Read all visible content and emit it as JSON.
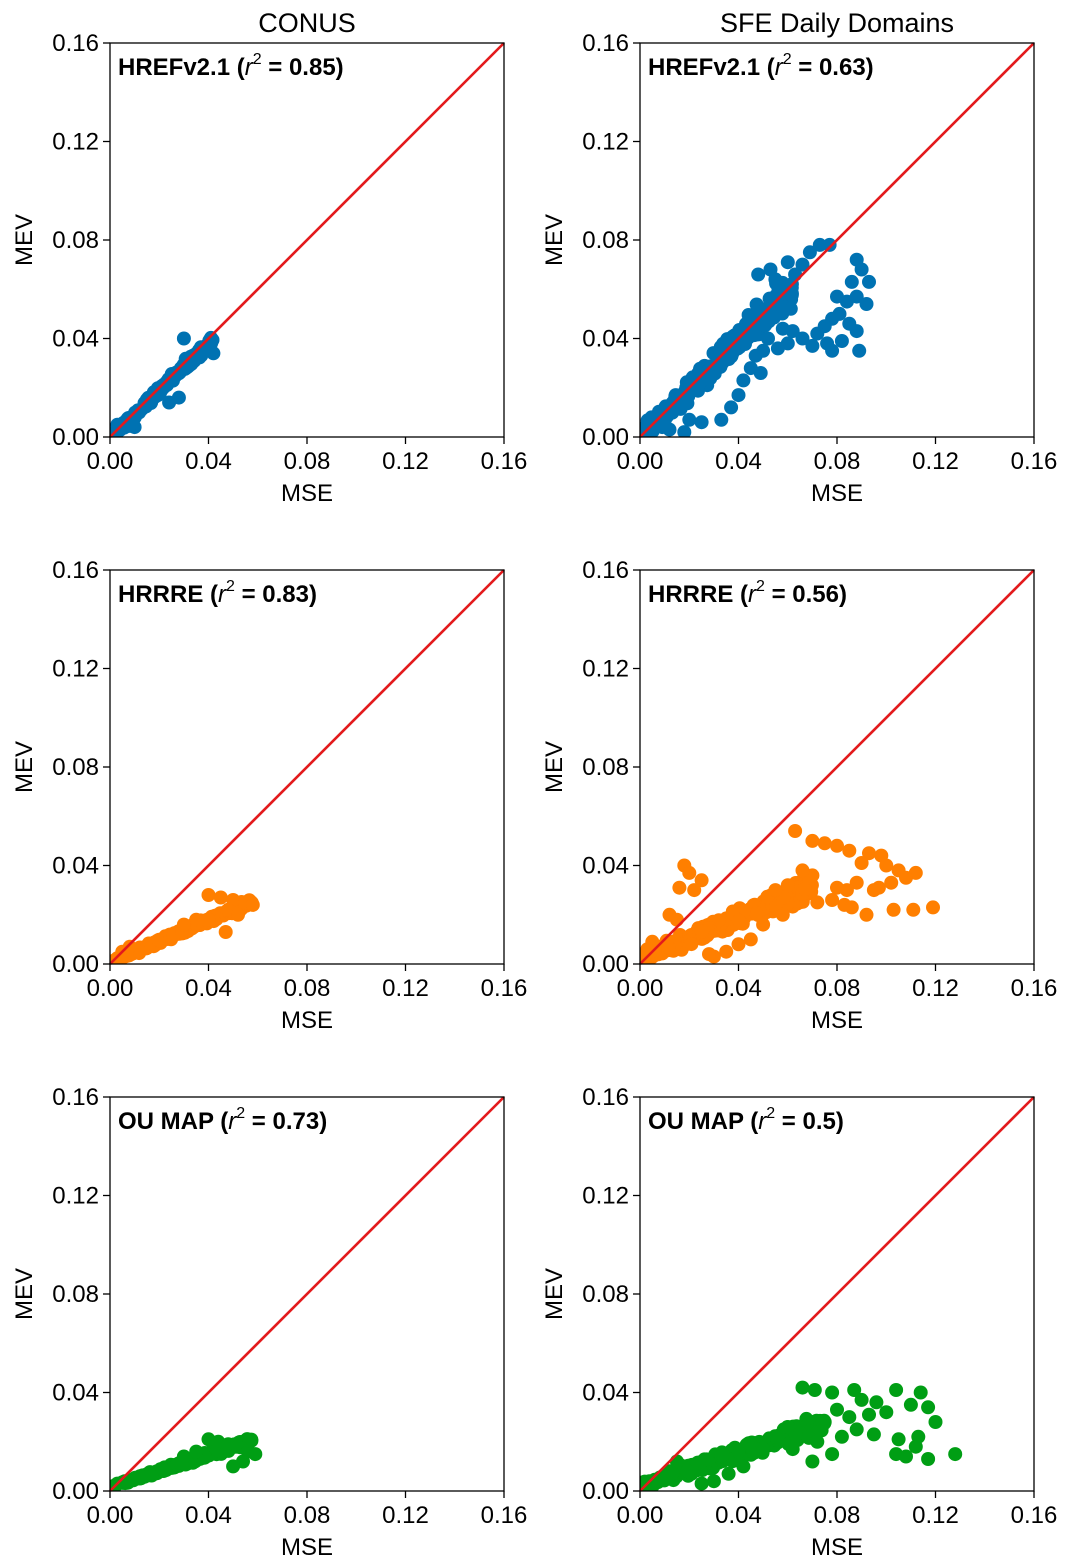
{
  "figure": {
    "column_titles": [
      "CONUS",
      "SFE Daily Domains"
    ]
  },
  "chart_data": [
    {
      "type": "scatter",
      "panel": "CONUS",
      "model": "HREFv2.1",
      "r2": "0.85",
      "color": "#0072B2",
      "xlabel": "MSE",
      "ylabel": "MEV",
      "xlim": [
        0,
        0.16
      ],
      "ylim": [
        0,
        0.16
      ],
      "xticks": [
        "0.00",
        "0.04",
        "0.08",
        "0.12",
        "0.16"
      ],
      "yticks": [
        "0.00",
        "0.04",
        "0.08",
        "0.12",
        "0.16"
      ],
      "reference_line": "y = x",
      "points_model": {
        "count": 170,
        "x_min": 0.0005,
        "x_max": 0.042,
        "slope": 0.97,
        "intercept": -0.0005,
        "spread": 0.0035,
        "seed": 11
      },
      "points": [
        [
          0.03,
          0.04
        ],
        [
          0.042,
          0.034
        ],
        [
          0.003,
          0.005
        ],
        [
          0.01,
          0.004
        ],
        [
          0.008,
          0.0045
        ],
        [
          0.024,
          0.014
        ],
        [
          0.028,
          0.016
        ]
      ]
    },
    {
      "type": "scatter",
      "panel": "SFE Daily Domains",
      "model": "HREFv2.1",
      "r2": "0.63",
      "color": "#0072B2",
      "xlabel": "MSE",
      "ylabel": "MEV",
      "xlim": [
        0,
        0.16
      ],
      "ylim": [
        0,
        0.16
      ],
      "xticks": [
        "0.00",
        "0.04",
        "0.08",
        "0.12",
        "0.16"
      ],
      "yticks": [
        "0.00",
        "0.04",
        "0.08",
        "0.12",
        "0.16"
      ],
      "reference_line": "y = x",
      "points_model": {
        "count": 230,
        "x_min": 0.001,
        "x_max": 0.062,
        "slope": 0.97,
        "intercept": 0.0,
        "spread": 0.011,
        "seed": 23
      },
      "points": [
        [
          0.073,
          0.078
        ],
        [
          0.077,
          0.078
        ],
        [
          0.069,
          0.075
        ],
        [
          0.066,
          0.07
        ],
        [
          0.06,
          0.071
        ],
        [
          0.063,
          0.066
        ],
        [
          0.053,
          0.068
        ],
        [
          0.048,
          0.066
        ],
        [
          0.055,
          0.064
        ],
        [
          0.088,
          0.072
        ],
        [
          0.09,
          0.068
        ],
        [
          0.093,
          0.063
        ],
        [
          0.086,
          0.063
        ],
        [
          0.08,
          0.057
        ],
        [
          0.088,
          0.057
        ],
        [
          0.092,
          0.054
        ],
        [
          0.084,
          0.055
        ],
        [
          0.081,
          0.05
        ],
        [
          0.085,
          0.046
        ],
        [
          0.078,
          0.048
        ],
        [
          0.088,
          0.043
        ],
        [
          0.075,
          0.045
        ],
        [
          0.082,
          0.039
        ],
        [
          0.076,
          0.038
        ],
        [
          0.072,
          0.042
        ],
        [
          0.07,
          0.037
        ],
        [
          0.078,
          0.035
        ],
        [
          0.089,
          0.035
        ],
        [
          0.066,
          0.04
        ],
        [
          0.062,
          0.043
        ],
        [
          0.06,
          0.038
        ],
        [
          0.058,
          0.044
        ],
        [
          0.056,
          0.036
        ],
        [
          0.052,
          0.04
        ],
        [
          0.05,
          0.035
        ],
        [
          0.047,
          0.033
        ],
        [
          0.045,
          0.028
        ],
        [
          0.042,
          0.023
        ],
        [
          0.049,
          0.026
        ],
        [
          0.04,
          0.017
        ],
        [
          0.037,
          0.012
        ],
        [
          0.033,
          0.007
        ],
        [
          0.02,
          0.007
        ],
        [
          0.025,
          0.006
        ],
        [
          0.012,
          0.003
        ],
        [
          0.018,
          0.002
        ],
        [
          0.009,
          0.004
        ]
      ]
    },
    {
      "type": "scatter",
      "panel": "CONUS",
      "model": "HRRRE",
      "r2": "0.83",
      "color": "#FF7F00",
      "xlabel": "MSE",
      "ylabel": "MEV",
      "xlim": [
        0,
        0.16
      ],
      "ylim": [
        0,
        0.16
      ],
      "xticks": [
        "0.00",
        "0.04",
        "0.08",
        "0.12",
        "0.16"
      ],
      "yticks": [
        "0.00",
        "0.04",
        "0.08",
        "0.12",
        "0.16"
      ],
      "reference_line": "y = x",
      "points_model": {
        "count": 180,
        "x_min": 0.001,
        "x_max": 0.058,
        "slope": 0.43,
        "intercept": 0.0005,
        "spread": 0.0025,
        "seed": 37
      },
      "points": [
        [
          0.04,
          0.028
        ],
        [
          0.045,
          0.027
        ],
        [
          0.05,
          0.026
        ],
        [
          0.055,
          0.025
        ],
        [
          0.058,
          0.024
        ],
        [
          0.048,
          0.022
        ],
        [
          0.052,
          0.02
        ],
        [
          0.047,
          0.013
        ],
        [
          0.035,
          0.018
        ],
        [
          0.03,
          0.016
        ],
        [
          0.005,
          0.005
        ],
        [
          0.008,
          0.007
        ]
      ]
    },
    {
      "type": "scatter",
      "panel": "SFE Daily Domains",
      "model": "HRRRE",
      "r2": "0.56",
      "color": "#FF7F00",
      "xlabel": "MSE",
      "ylabel": "MEV",
      "xlim": [
        0,
        0.16
      ],
      "ylim": [
        0,
        0.16
      ],
      "xticks": [
        "0.00",
        "0.04",
        "0.08",
        "0.12",
        "0.16"
      ],
      "yticks": [
        "0.00",
        "0.04",
        "0.08",
        "0.12",
        "0.16"
      ],
      "reference_line": "y = x",
      "points_model": {
        "count": 230,
        "x_min": 0.001,
        "x_max": 0.07,
        "slope": 0.42,
        "intercept": 0.002,
        "spread": 0.007,
        "seed": 53
      },
      "points": [
        [
          0.063,
          0.054
        ],
        [
          0.07,
          0.05
        ],
        [
          0.075,
          0.049
        ],
        [
          0.08,
          0.048
        ],
        [
          0.085,
          0.046
        ],
        [
          0.093,
          0.045
        ],
        [
          0.09,
          0.041
        ],
        [
          0.098,
          0.044
        ],
        [
          0.1,
          0.04
        ],
        [
          0.105,
          0.038
        ],
        [
          0.112,
          0.037
        ],
        [
          0.108,
          0.035
        ],
        [
          0.102,
          0.033
        ],
        [
          0.097,
          0.031
        ],
        [
          0.095,
          0.03
        ],
        [
          0.088,
          0.033
        ],
        [
          0.084,
          0.03
        ],
        [
          0.08,
          0.031
        ],
        [
          0.078,
          0.026
        ],
        [
          0.083,
          0.024
        ],
        [
          0.092,
          0.02
        ],
        [
          0.103,
          0.022
        ],
        [
          0.111,
          0.022
        ],
        [
          0.119,
          0.023
        ],
        [
          0.086,
          0.023
        ],
        [
          0.072,
          0.025
        ],
        [
          0.07,
          0.036
        ],
        [
          0.066,
          0.038
        ],
        [
          0.06,
          0.032
        ],
        [
          0.055,
          0.03
        ],
        [
          0.058,
          0.02
        ],
        [
          0.05,
          0.016
        ],
        [
          0.045,
          0.01
        ],
        [
          0.04,
          0.008
        ],
        [
          0.035,
          0.005
        ],
        [
          0.03,
          0.003
        ],
        [
          0.028,
          0.004
        ],
        [
          0.018,
          0.04
        ],
        [
          0.02,
          0.037
        ],
        [
          0.025,
          0.034
        ],
        [
          0.016,
          0.031
        ],
        [
          0.022,
          0.03
        ],
        [
          0.012,
          0.02
        ],
        [
          0.015,
          0.018
        ],
        [
          0.005,
          0.009
        ],
        [
          0.003,
          0.006
        ]
      ]
    },
    {
      "type": "scatter",
      "panel": "CONUS",
      "model": "OU MAP",
      "r2": "0.73",
      "color": "#009E14",
      "xlabel": "MSE",
      "ylabel": "MEV",
      "xlim": [
        0,
        0.16
      ],
      "ylim": [
        0,
        0.16
      ],
      "xticks": [
        "0.00",
        "0.04",
        "0.08",
        "0.12",
        "0.16"
      ],
      "yticks": [
        "0.00",
        "0.04",
        "0.08",
        "0.12",
        "0.16"
      ],
      "reference_line": "y = x",
      "points_model": {
        "count": 180,
        "x_min": 0.001,
        "x_max": 0.058,
        "slope": 0.33,
        "intercept": 0.0015,
        "spread": 0.002,
        "seed": 71
      },
      "points": [
        [
          0.04,
          0.021
        ],
        [
          0.044,
          0.02
        ],
        [
          0.048,
          0.019
        ],
        [
          0.052,
          0.018
        ],
        [
          0.056,
          0.016
        ],
        [
          0.059,
          0.015
        ],
        [
          0.054,
          0.012
        ],
        [
          0.05,
          0.01
        ],
        [
          0.035,
          0.016
        ],
        [
          0.03,
          0.014
        ],
        [
          0.003,
          0.003
        ],
        [
          0.006,
          0.004
        ]
      ]
    },
    {
      "type": "scatter",
      "panel": "SFE Daily Domains",
      "model": "OU MAP",
      "r2": "0.5",
      "color": "#009E14",
      "xlabel": "MSE",
      "ylabel": "MEV",
      "xlim": [
        0,
        0.16
      ],
      "ylim": [
        0,
        0.16
      ],
      "xticks": [
        "0.00",
        "0.04",
        "0.08",
        "0.12",
        "0.16"
      ],
      "yticks": [
        "0.00",
        "0.04",
        "0.08",
        "0.12",
        "0.16"
      ],
      "reference_line": "y = x",
      "points_model": {
        "count": 240,
        "x_min": 0.001,
        "x_max": 0.075,
        "slope": 0.34,
        "intercept": 0.002,
        "spread": 0.006,
        "seed": 97
      },
      "points": [
        [
          0.066,
          0.042
        ],
        [
          0.071,
          0.041
        ],
        [
          0.078,
          0.04
        ],
        [
          0.087,
          0.041
        ],
        [
          0.104,
          0.041
        ],
        [
          0.114,
          0.04
        ],
        [
          0.09,
          0.037
        ],
        [
          0.096,
          0.036
        ],
        [
          0.11,
          0.035
        ],
        [
          0.117,
          0.034
        ],
        [
          0.12,
          0.028
        ],
        [
          0.1,
          0.032
        ],
        [
          0.093,
          0.031
        ],
        [
          0.085,
          0.03
        ],
        [
          0.08,
          0.033
        ],
        [
          0.075,
          0.028
        ],
        [
          0.088,
          0.025
        ],
        [
          0.082,
          0.022
        ],
        [
          0.095,
          0.023
        ],
        [
          0.105,
          0.021
        ],
        [
          0.112,
          0.018
        ],
        [
          0.104,
          0.015
        ],
        [
          0.108,
          0.014
        ],
        [
          0.117,
          0.013
        ],
        [
          0.128,
          0.015
        ],
        [
          0.113,
          0.022
        ],
        [
          0.072,
          0.02
        ],
        [
          0.078,
          0.015
        ],
        [
          0.07,
          0.012
        ],
        [
          0.06,
          0.026
        ],
        [
          0.055,
          0.022
        ],
        [
          0.062,
          0.017
        ],
        [
          0.045,
          0.019
        ],
        [
          0.042,
          0.01
        ],
        [
          0.036,
          0.007
        ],
        [
          0.03,
          0.004
        ],
        [
          0.025,
          0.003
        ],
        [
          0.015,
          0.012
        ],
        [
          0.012,
          0.008
        ],
        [
          0.005,
          0.004
        ]
      ]
    }
  ]
}
